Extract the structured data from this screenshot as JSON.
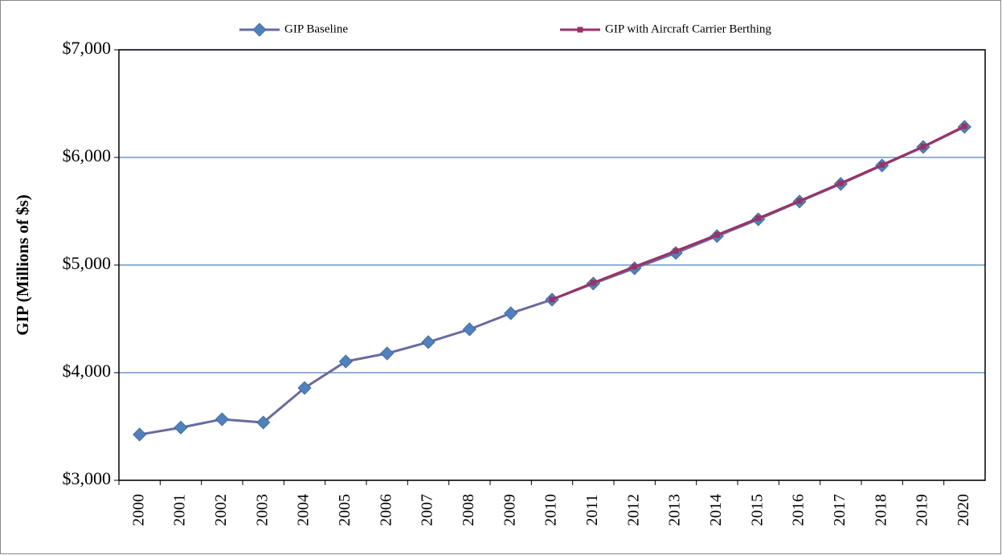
{
  "chart_data": {
    "type": "line",
    "y_label": "GIP (Millions of $s)",
    "categories": [
      "2000",
      "2001",
      "2002",
      "2003",
      "2004",
      "2005",
      "2006",
      "2007",
      "2008",
      "2009",
      "2010",
      "2011",
      "2012",
      "2013",
      "2014",
      "2015",
      "2016",
      "2017",
      "2018",
      "2019",
      "2020"
    ],
    "series": [
      {
        "name": "GIP Baseline",
        "color": "#6a6aa0",
        "marker_color": "#4f81bd",
        "marker": "diamond",
        "values": [
          3425,
          3490,
          3567,
          3537,
          3858,
          4104,
          4179,
          4284,
          4403,
          4552,
          4679,
          4828,
          4970,
          5112,
          5269,
          5425,
          5590,
          5754,
          5925,
          6097,
          6284
        ]
      },
      {
        "name": "GIP with Aircraft Carrier Berthing",
        "color": "#993366",
        "marker_color": "#993366",
        "marker": "square",
        "values": [
          null,
          null,
          null,
          null,
          null,
          null,
          null,
          null,
          null,
          null,
          4680,
          4835,
          4985,
          5130,
          5280,
          5435,
          5595,
          5760,
          5930,
          6100,
          6290
        ]
      }
    ],
    "ylim": [
      3000,
      7000
    ],
    "yticks": [
      {
        "value": 3000,
        "label": "$3,000"
      },
      {
        "value": 4000,
        "label": "$4,000"
      },
      {
        "value": 5000,
        "label": "$5,000"
      },
      {
        "value": 6000,
        "label": "$6,000"
      },
      {
        "value": 7000,
        "label": "$7,000"
      }
    ],
    "grid": true,
    "grid_color": "#4f81bd",
    "legend": "top"
  }
}
